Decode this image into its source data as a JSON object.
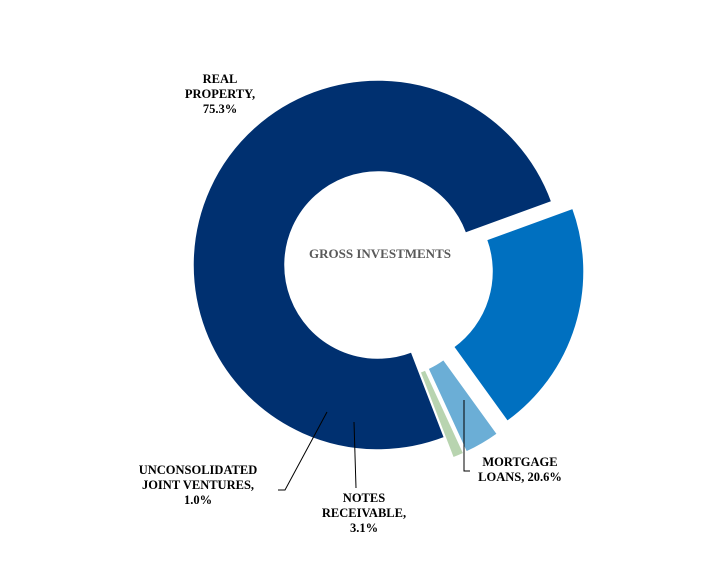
{
  "chart_data": {
    "type": "pie",
    "title": "GROSS INVESTMENTS",
    "slices": [
      {
        "name": "MORTGAGE LOANS",
        "value": 20.6,
        "label_lines": [
          "MORTGAGE",
          "LOANS, 20.6%"
        ],
        "color": "#0070C0"
      },
      {
        "name": "NOTES RECEIVABLE",
        "value": 3.1,
        "label_lines": [
          "NOTES",
          "RECEIVABLE,",
          "3.1%"
        ],
        "color": "#6BAED6"
      },
      {
        "name": "UNCONSOLIDATED JOINT VENTURES",
        "value": 1.0,
        "label_lines": [
          "UNCONSOLIDATED",
          "JOINT VENTURES,",
          "1.0%"
        ],
        "color": "#B8D4B0"
      },
      {
        "name": "REAL PROPERTY",
        "value": 75.3,
        "label_lines": [
          "REAL",
          "PROPERTY,",
          "75.3%"
        ],
        "color": "#003070"
      }
    ],
    "legend": "none",
    "style": "donut, exploded slices"
  }
}
